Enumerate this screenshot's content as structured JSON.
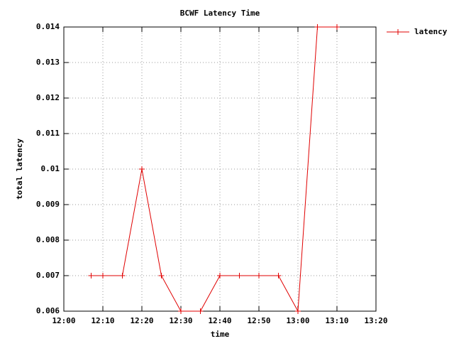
{
  "chart_data": {
    "type": "line",
    "title": "BCWF Latency Time",
    "x_label": "time",
    "y_label": "total latency",
    "x": [
      "12:07",
      "12:10",
      "12:15",
      "12:20",
      "12:25",
      "12:30",
      "12:35",
      "12:40",
      "12:45",
      "12:50",
      "12:55",
      "13:00",
      "13:05",
      "13:10"
    ],
    "series": [
      {
        "name": "latency",
        "color": "#e00000",
        "values": [
          0.007,
          0.007,
          0.007,
          0.01,
          0.007,
          0.006,
          0.006,
          0.007,
          0.007,
          0.007,
          0.007,
          0.006,
          0.014,
          0.014
        ]
      }
    ],
    "xlim": [
      "12:00",
      "13:20"
    ],
    "xticks": [
      "12:00",
      "12:10",
      "12:20",
      "12:30",
      "12:40",
      "12:50",
      "13:00",
      "13:10",
      "13:20"
    ],
    "ylim": [
      0.006,
      0.014
    ],
    "yticks": [
      0.006,
      0.007,
      0.008,
      0.009,
      0.01,
      0.011,
      0.012,
      0.013,
      0.014
    ],
    "grid": true,
    "legend": "outside-right"
  }
}
